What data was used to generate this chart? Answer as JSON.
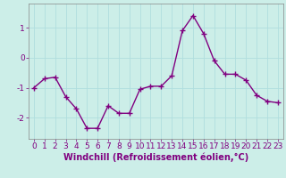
{
  "x": [
    0,
    1,
    2,
    3,
    4,
    5,
    6,
    7,
    8,
    9,
    10,
    11,
    12,
    13,
    14,
    15,
    16,
    17,
    18,
    19,
    20,
    21,
    22,
    23
  ],
  "y": [
    -1.0,
    -0.7,
    -0.65,
    -1.3,
    -1.7,
    -2.35,
    -2.35,
    -1.6,
    -1.85,
    -1.85,
    -1.05,
    -0.95,
    -0.95,
    -0.6,
    0.9,
    1.4,
    0.8,
    -0.1,
    -0.55,
    -0.55,
    -0.75,
    -1.25,
    -1.45,
    -1.5
  ],
  "line_color": "#800080",
  "marker": "+",
  "markersize": 4,
  "linewidth": 1.0,
  "xlabel": "Windchill (Refroidissement éolien,°C)",
  "xlabel_fontsize": 7,
  "xlim": [
    -0.5,
    23.5
  ],
  "ylim": [
    -2.7,
    1.8
  ],
  "yticks": [
    -2,
    -1,
    0,
    1
  ],
  "xticks": [
    0,
    1,
    2,
    3,
    4,
    5,
    6,
    7,
    8,
    9,
    10,
    11,
    12,
    13,
    14,
    15,
    16,
    17,
    18,
    19,
    20,
    21,
    22,
    23
  ],
  "grid_color": "#b0dede",
  "bg_color": "#cceee8",
  "tick_fontsize": 6.5,
  "spine_color": "#888888"
}
